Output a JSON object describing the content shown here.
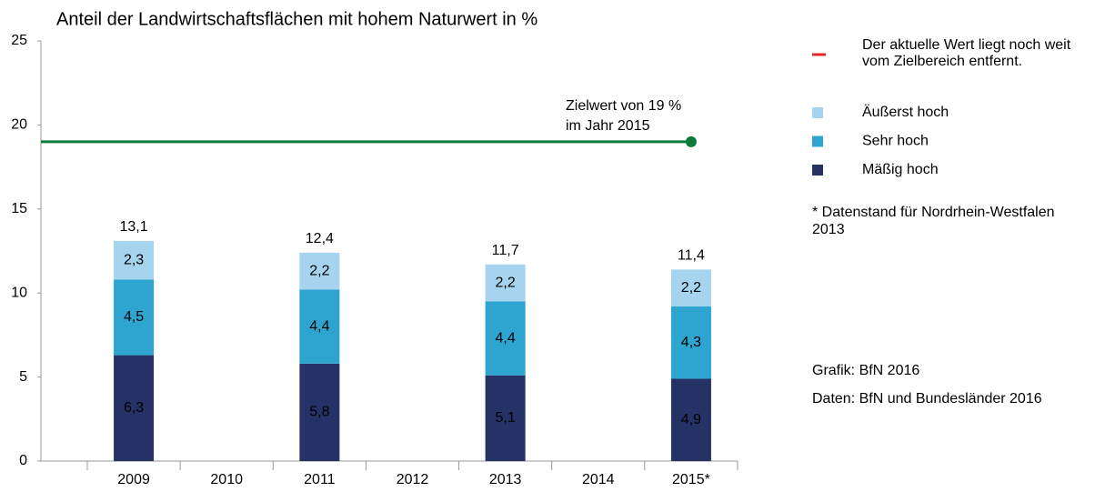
{
  "chart_data": {
    "type": "stacked_bar",
    "title": "Anteil der Landwirtschaftsflächen mit hohem Naturwert in %",
    "categories": [
      "2009",
      "2010",
      "2011",
      "2012",
      "2013",
      "2014",
      "2015*"
    ],
    "series": [
      {
        "name": "Mäßig hoch",
        "color": "#253266",
        "label_color": "#ffffff",
        "values": [
          6.3,
          null,
          5.8,
          null,
          5.1,
          null,
          4.9
        ],
        "value_labels": [
          "6,3",
          null,
          "5,8",
          null,
          "5,1",
          null,
          "4,9"
        ]
      },
      {
        "name": "Sehr hoch",
        "color": "#2ea5d1",
        "label_color": "#000000",
        "values": [
          4.5,
          null,
          4.4,
          null,
          4.4,
          null,
          4.3
        ],
        "value_labels": [
          "4,5",
          null,
          "4,4",
          null,
          "4,4",
          null,
          "4,3"
        ]
      },
      {
        "name": "Äußerst hoch",
        "color": "#a6d3ee",
        "label_color": "#000000",
        "values": [
          2.3,
          null,
          2.2,
          null,
          2.2,
          null,
          2.2
        ],
        "value_labels": [
          "2,3",
          null,
          "2,2",
          null,
          "2,2",
          null,
          "2,2"
        ]
      }
    ],
    "total_labels": [
      "13,1",
      null,
      "12,4",
      null,
      "11,7",
      null,
      "11,4"
    ],
    "target": {
      "value": 19,
      "color": "#0b7a3b",
      "label": [
        "Zielwert von 19 %",
        "im Jahr 2015"
      ]
    },
    "status_note": {
      "color": "#e3262b",
      "text": [
        "Der aktuelle Wert liegt noch weit",
        "vom Zielbereich entfernt."
      ]
    },
    "footnote": [
      "* Datenstand für Nordrhein-Westfalen",
      "2013"
    ],
    "credits": [
      "Grafik: BfN 2016",
      "Daten: BfN und Bundesländer 2016"
    ],
    "ylim": [
      0,
      25
    ],
    "yticks": [
      0,
      5,
      10,
      15,
      20,
      25
    ]
  }
}
